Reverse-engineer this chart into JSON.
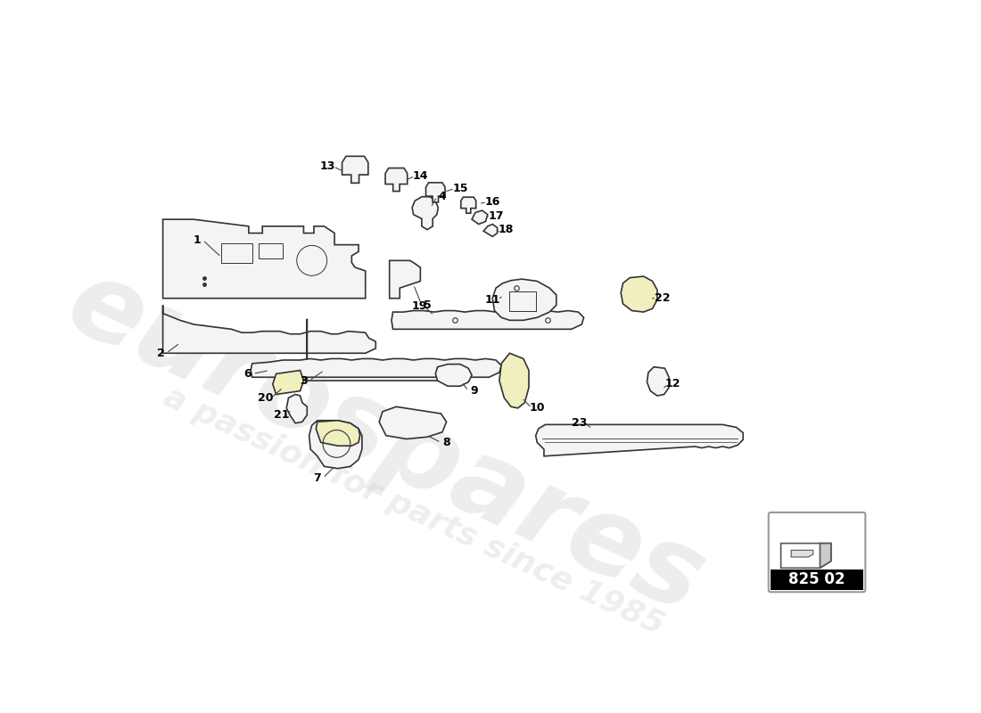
{
  "bg_color": "#ffffff",
  "watermark_text1": "eurospares",
  "watermark_text2": "a passion for parts since 1985",
  "part_number_box": "825 02",
  "line_color": "#333333",
  "fill_white": "#ffffff",
  "fill_light": "#f4f4f4",
  "fill_yellow": "#f0efbe",
  "lw": 1.2
}
